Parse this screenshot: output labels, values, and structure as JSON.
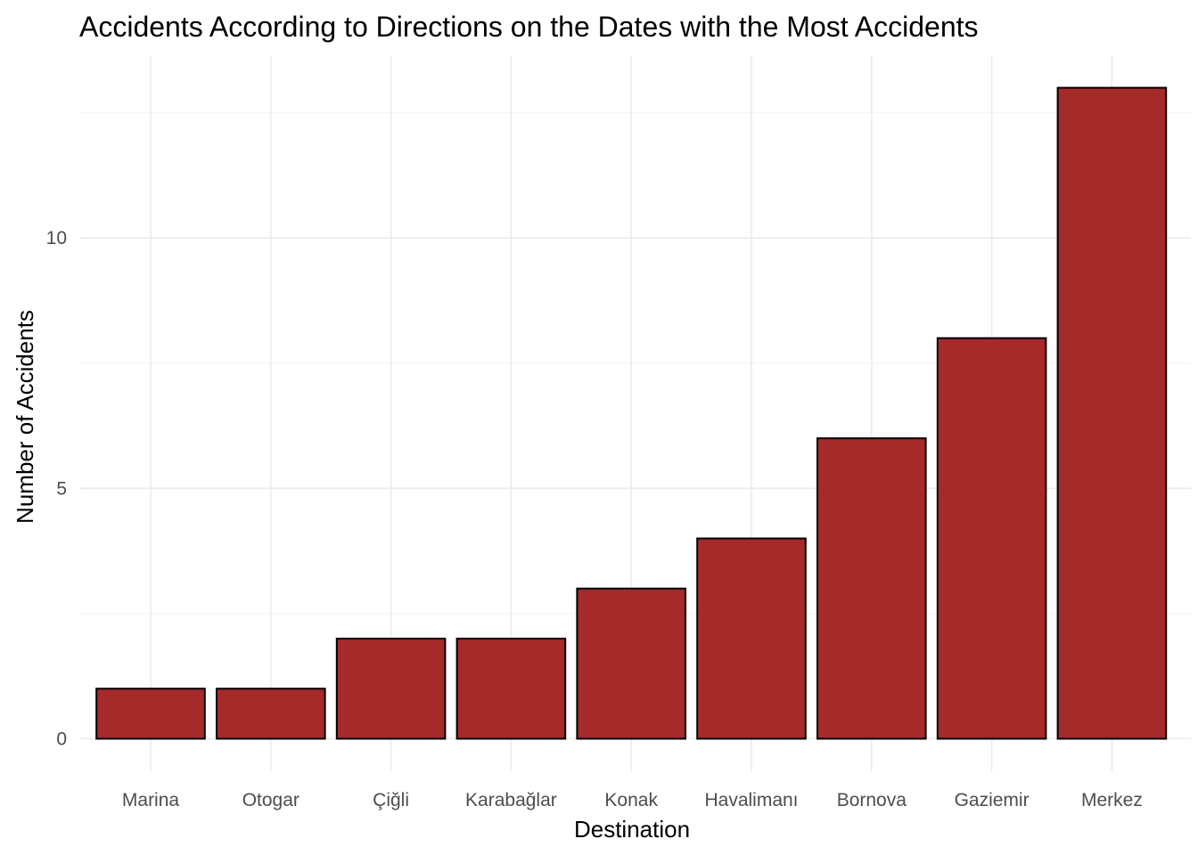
{
  "chart_data": {
    "type": "bar",
    "title": "Accidents According to Directions on the Dates with the Most Accidents",
    "xlabel": "Destination",
    "ylabel": "Number of Accidents",
    "categories": [
      "Marina",
      "Otogar",
      "Çiğli",
      "Karabağlar",
      "Konak",
      "Havalimanı",
      "Bornova",
      "Gaziemir",
      "Merkez"
    ],
    "values": [
      1,
      1,
      2,
      2,
      3,
      4,
      6,
      8,
      13
    ],
    "yticks": [
      0,
      5,
      10
    ],
    "ytick_labels": [
      "0",
      "5",
      "10"
    ],
    "ylim": [
      -0.65,
      13.65
    ],
    "grid": true,
    "colors": {
      "bar_fill": "#A52A2A",
      "bar_stroke": "#000000",
      "grid": "#EBEBEB"
    }
  }
}
